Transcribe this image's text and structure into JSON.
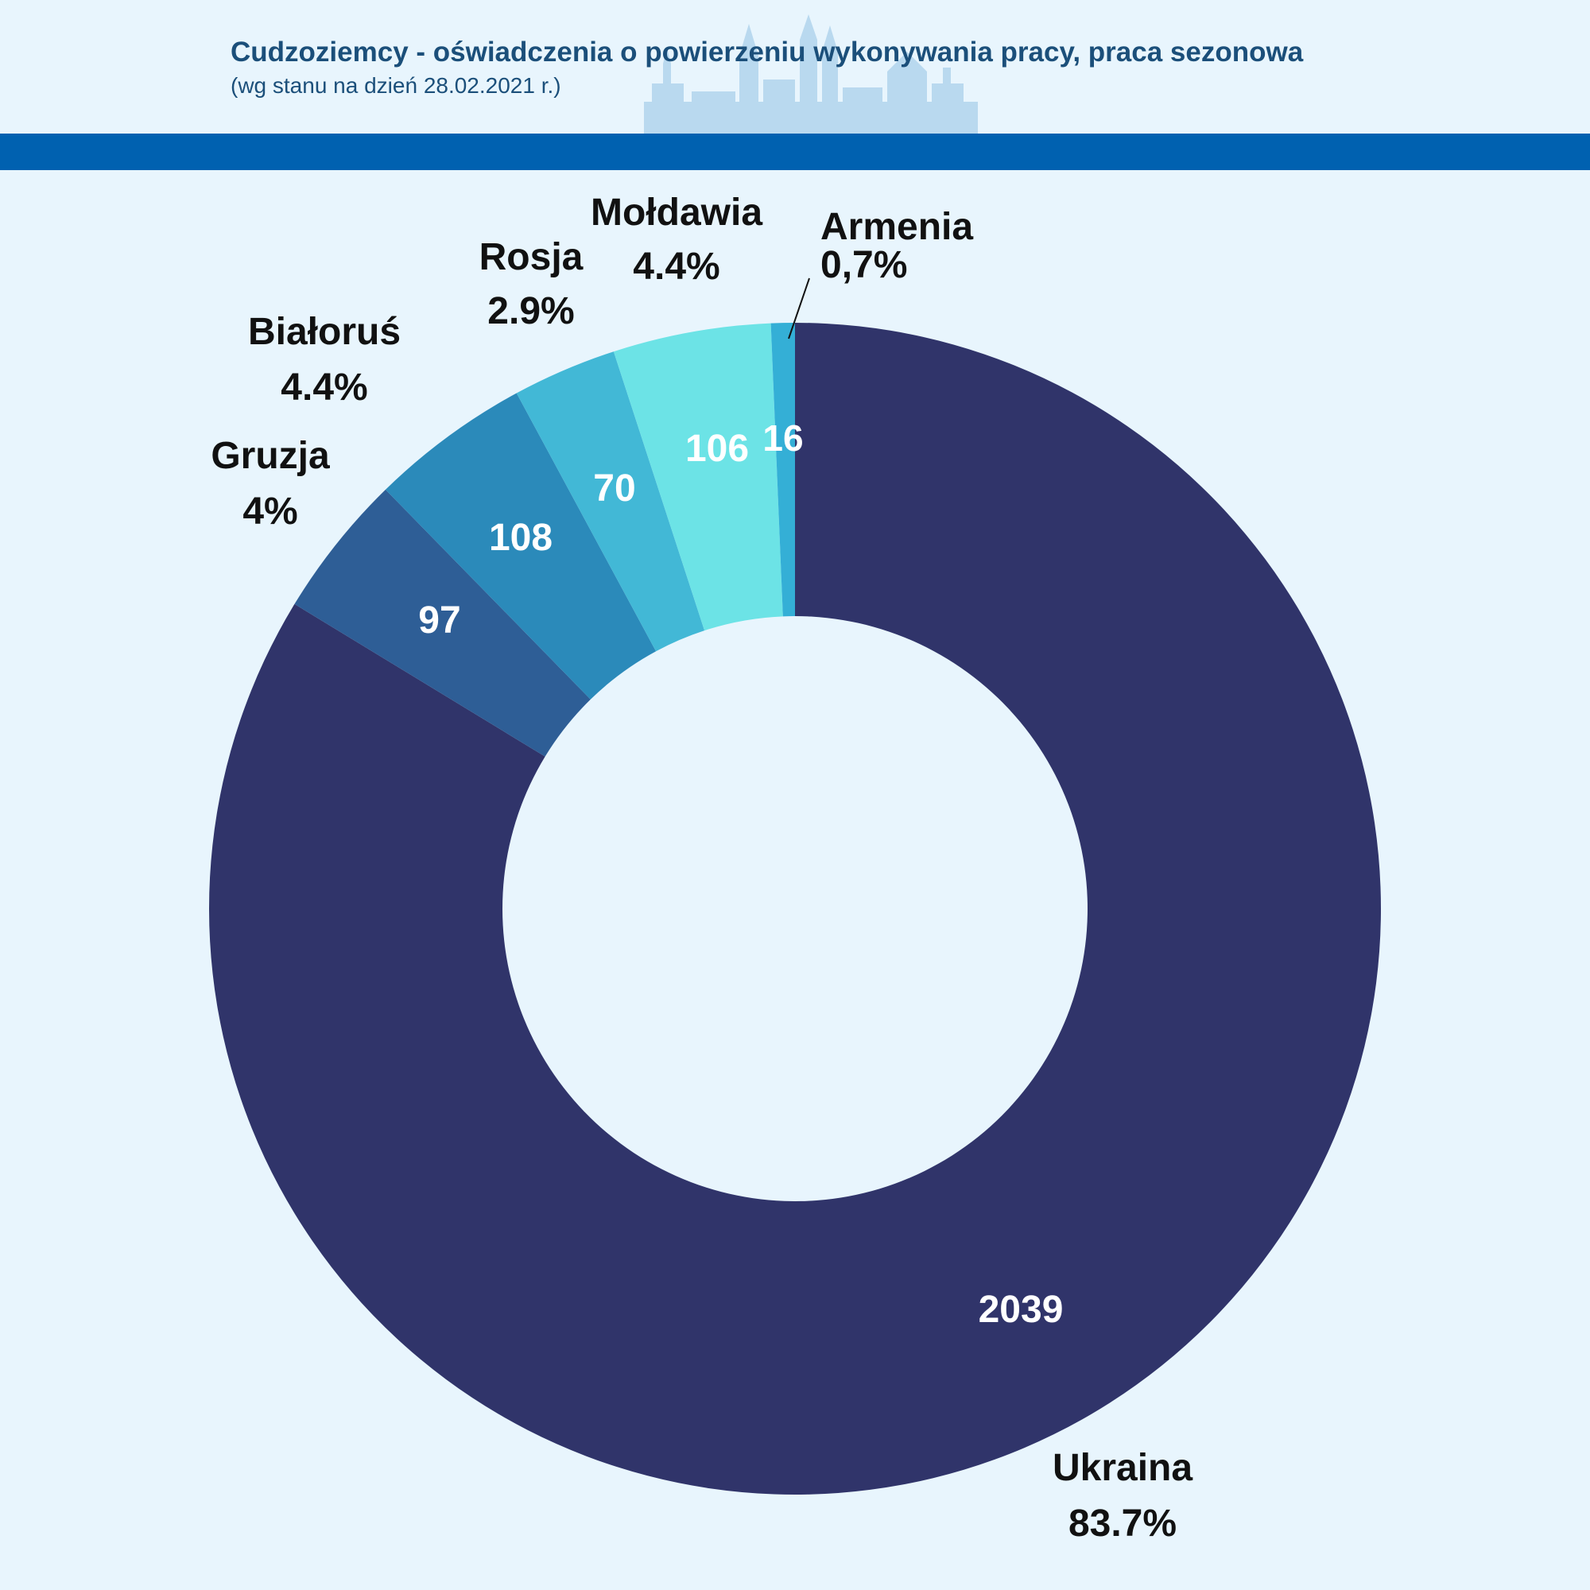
{
  "header": {
    "title": "Cudzoziemcy - oświadczenia o powierzeniu wykonywania pracy, praca sezonowa",
    "subtitle": "(wg stanu na dzień 28.02.2021 r.)"
  },
  "colors": {
    "background": "#e8f5fd",
    "band": "#0061b0",
    "title": "#1b4f7a"
  },
  "chart_data": {
    "type": "pie",
    "donut": true,
    "title": "Cudzoziemcy - oświadczenia o powierzeniu wykonywania pracy, praca sezonowa",
    "subtitle": "(wg stanu na dzień 28.02.2021 r.)",
    "slices": [
      {
        "name": "Ukraina",
        "value": 2039,
        "value_label": "2039",
        "pct_label": "83.7%",
        "color": "#30346a"
      },
      {
        "name": "Gruzja",
        "value": 97,
        "value_label": "97",
        "pct_label": "4%",
        "color": "#2e5e96"
      },
      {
        "name": "Białoruś",
        "value": 108,
        "value_label": "108",
        "pct_label": "4.4%",
        "color": "#2b8aba"
      },
      {
        "name": "Rosja",
        "value": 70,
        "value_label": "70",
        "pct_label": "2.9%",
        "color": "#42b8d6"
      },
      {
        "name": "Mołdawia",
        "value": 106,
        "value_label": "106",
        "pct_label": "4.4%",
        "color": "#6ce3e6"
      },
      {
        "name": "Armenia",
        "value": 16,
        "value_label": "16",
        "pct_label": "0,7%",
        "color": "#34afd6"
      }
    ]
  }
}
